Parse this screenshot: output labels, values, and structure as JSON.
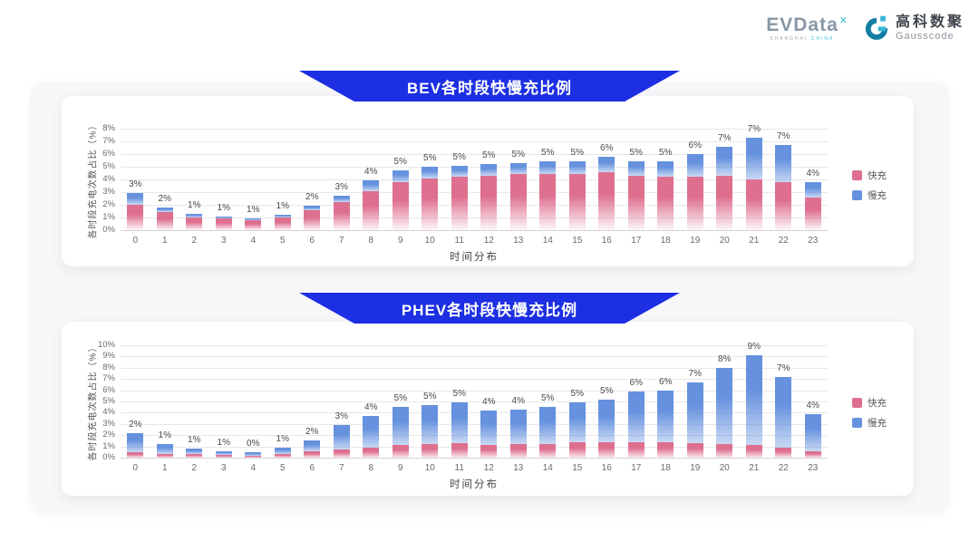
{
  "colors": {
    "banner_blue": "#1c2fe3",
    "fast_pink": "#de6f8f",
    "slow_blue": "#6591de",
    "panel_bg": "#f7f7f9"
  },
  "logos": {
    "evdata": {
      "name": "EVData",
      "mark": "✕",
      "subtitle_1": "SHANGHAI",
      "subtitle_2": "CHINA"
    },
    "gausscode": {
      "name_cn": "高科数聚",
      "name_en": "Gausscode"
    }
  },
  "chart_data": [
    {
      "type": "bar",
      "stacked": true,
      "grid": true,
      "legend_position": "right",
      "title": "BEV各时段快慢充比例",
      "xlabel": "时间分布",
      "ylabel": "各时段充电次数占比（%）",
      "ymax": 8,
      "ytick_step": 1,
      "ytick_suffix": "%",
      "categories": [
        "0",
        "1",
        "2",
        "3",
        "4",
        "5",
        "6",
        "7",
        "8",
        "9",
        "10",
        "11",
        "12",
        "13",
        "14",
        "15",
        "16",
        "17",
        "18",
        "19",
        "20",
        "21",
        "22",
        "23"
      ],
      "series": [
        {
          "name": "快充",
          "key": "fast-charge",
          "color": "#de6f8f",
          "fade": "rgba(222,111,143,0.06)",
          "values": [
            2.0,
            1.4,
            1.0,
            0.9,
            0.8,
            1.0,
            1.6,
            2.2,
            3.1,
            3.8,
            4.1,
            4.2,
            4.3,
            4.4,
            4.4,
            4.4,
            4.6,
            4.3,
            4.2,
            4.2,
            4.3,
            4.0,
            3.8,
            2.6
          ]
        },
        {
          "name": "慢充",
          "key": "slow-charge",
          "color": "#6591de",
          "fade": "rgba(101,145,222,0.35)",
          "values": [
            0.9,
            0.4,
            0.3,
            0.2,
            0.15,
            0.2,
            0.3,
            0.5,
            0.8,
            0.9,
            0.9,
            0.9,
            0.9,
            0.9,
            1.0,
            1.0,
            1.2,
            1.1,
            1.2,
            1.8,
            2.3,
            3.3,
            2.9,
            1.2
          ]
        }
      ],
      "total_labels": [
        "3%",
        "2%",
        "1%",
        "1%",
        "1%",
        "1%",
        "2%",
        "3%",
        "4%",
        "5%",
        "5%",
        "5%",
        "5%",
        "5%",
        "5%",
        "5%",
        "6%",
        "5%",
        "5%",
        "6%",
        "7%",
        "7%",
        "7%",
        "4%"
      ]
    },
    {
      "type": "bar",
      "stacked": true,
      "grid": true,
      "legend_position": "right",
      "title": "PHEV各时段快慢充比例",
      "xlabel": "时间分布",
      "ylabel": "各时段充电次数占比（%）",
      "ymax": 10,
      "ytick_step": 1,
      "ytick_suffix": "%",
      "categories": [
        "0",
        "1",
        "2",
        "3",
        "4",
        "5",
        "6",
        "7",
        "8",
        "9",
        "10",
        "11",
        "12",
        "13",
        "14",
        "15",
        "16",
        "17",
        "18",
        "19",
        "20",
        "21",
        "22",
        "23"
      ],
      "series": [
        {
          "name": "快充",
          "key": "fast-charge",
          "color": "#de6f8f",
          "fade": "rgba(222,111,143,0.15)",
          "values": [
            0.5,
            0.35,
            0.3,
            0.25,
            0.2,
            0.3,
            0.55,
            0.7,
            0.9,
            1.1,
            1.2,
            1.3,
            1.1,
            1.2,
            1.2,
            1.4,
            1.4,
            1.4,
            1.4,
            1.3,
            1.2,
            1.1,
            0.9,
            0.6
          ]
        },
        {
          "name": "慢充",
          "key": "slow-charge",
          "color": "#6591de",
          "fade": "rgba(101,145,222,0.35)",
          "values": [
            1.7,
            0.85,
            0.5,
            0.35,
            0.25,
            0.55,
            0.95,
            2.2,
            2.8,
            3.4,
            3.5,
            3.6,
            3.1,
            3.1,
            3.3,
            3.5,
            3.8,
            4.5,
            4.6,
            5.4,
            6.8,
            8.0,
            6.3,
            3.3
          ]
        }
      ],
      "total_labels": [
        "2%",
        "1%",
        "1%",
        "1%",
        "0%",
        "1%",
        "2%",
        "3%",
        "4%",
        "5%",
        "5%",
        "5%",
        "4%",
        "4%",
        "5%",
        "5%",
        "5%",
        "6%",
        "6%",
        "7%",
        "8%",
        "9%",
        "7%",
        "4%"
      ]
    }
  ]
}
